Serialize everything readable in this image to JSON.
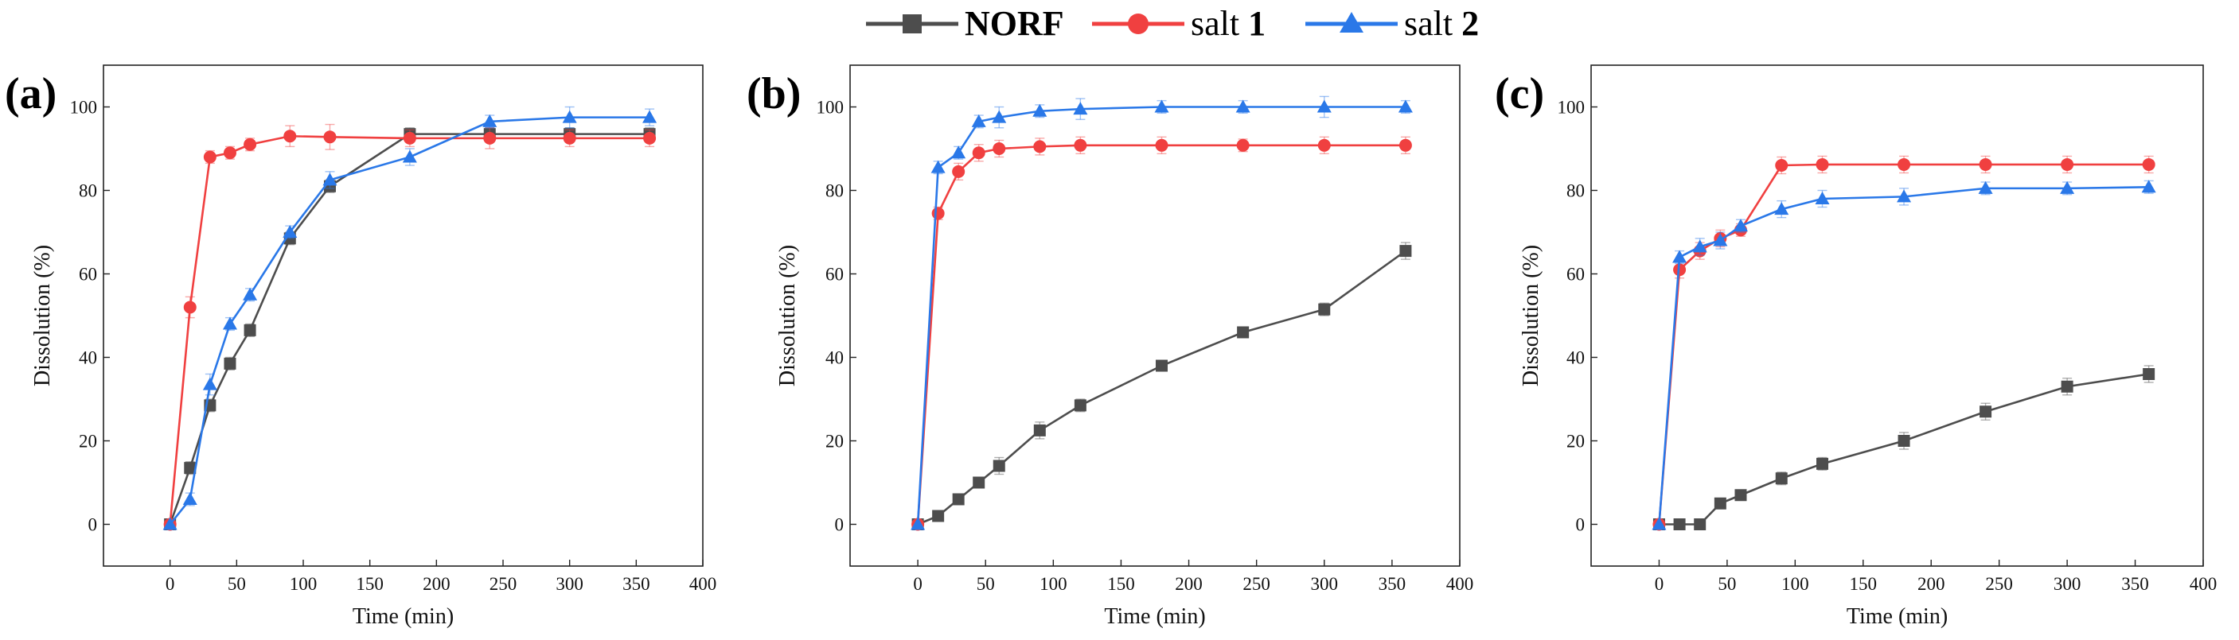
{
  "legend": [
    {
      "label": "NORF",
      "color": "#4d4d4d",
      "marker": "square",
      "bold": true
    },
    {
      "label": "salt ",
      "suffix": "1",
      "color": "#f04040",
      "marker": "circle",
      "bold": false
    },
    {
      "label": "salt ",
      "suffix": "2",
      "color": "#2a78e8",
      "marker": "triangle",
      "bold": false
    }
  ],
  "chart_data": [
    {
      "type": "line",
      "panel_label": "(a)",
      "xlabel": "Time (min)",
      "ylabel": "Dissolution (%)",
      "xlim": [
        -50,
        400
      ],
      "ylim": [
        -10,
        110
      ],
      "xticks": [
        0,
        50,
        100,
        150,
        200,
        250,
        300,
        350,
        400
      ],
      "yticks": [
        0,
        20,
        40,
        60,
        80,
        100
      ],
      "series": [
        {
          "name": "NORF",
          "x": [
            0,
            15,
            30,
            45,
            60,
            90,
            120,
            180,
            240,
            300,
            360
          ],
          "y": [
            0,
            13.5,
            28.5,
            38.5,
            46.5,
            68.5,
            81,
            93.5,
            93.5,
            93.5,
            93.5
          ],
          "err": [
            0,
            1.5,
            1.5,
            1.5,
            1.5,
            1.5,
            1.5,
            1.5,
            1.5,
            1.5,
            1.5
          ]
        },
        {
          "name": "salt 1",
          "x": [
            0,
            15,
            30,
            45,
            60,
            90,
            120,
            180,
            240,
            300,
            360
          ],
          "y": [
            0,
            52,
            88,
            89,
            91,
            93,
            92.8,
            92.5,
            92.5,
            92.5,
            92.5
          ],
          "err": [
            0,
            2.5,
            1.5,
            1.5,
            1.5,
            2.5,
            3,
            2,
            2.5,
            2,
            2
          ]
        },
        {
          "name": "salt 2",
          "x": [
            0,
            15,
            30,
            45,
            60,
            90,
            120,
            180,
            240,
            300,
            360
          ],
          "y": [
            0,
            6,
            33.5,
            48,
            55,
            70,
            82.5,
            88,
            96.5,
            97.5,
            97.5
          ],
          "err": [
            0,
            1.5,
            2.5,
            1.5,
            1.5,
            1.5,
            2,
            2,
            1.5,
            2.5,
            2
          ]
        }
      ]
    },
    {
      "type": "line",
      "panel_label": "(b)",
      "xlabel": "Time (min)",
      "ylabel": "Dissolution (%)",
      "xlim": [
        -50,
        400
      ],
      "ylim": [
        -10,
        110
      ],
      "xticks": [
        0,
        50,
        100,
        150,
        200,
        250,
        300,
        350,
        400
      ],
      "yticks": [
        0,
        20,
        40,
        60,
        80,
        100
      ],
      "series": [
        {
          "name": "NORF",
          "x": [
            0,
            15,
            30,
            45,
            60,
            90,
            120,
            180,
            240,
            300,
            360
          ],
          "y": [
            0,
            2,
            6,
            10,
            14,
            22.5,
            28.5,
            38,
            46,
            51.5,
            65.5
          ],
          "err": [
            0,
            1,
            1,
            1,
            2,
            2,
            1.5,
            1,
            1,
            1.5,
            2
          ]
        },
        {
          "name": "salt 1",
          "x": [
            0,
            15,
            30,
            45,
            60,
            90,
            120,
            180,
            240,
            300,
            360
          ],
          "y": [
            0,
            74.5,
            84.5,
            89,
            90,
            90.5,
            90.8,
            90.8,
            90.8,
            90.8,
            90.8
          ],
          "err": [
            0,
            1.5,
            2,
            2,
            2,
            2,
            2,
            2,
            1.5,
            2,
            2
          ]
        },
        {
          "name": "salt 2",
          "x": [
            0,
            15,
            30,
            45,
            60,
            90,
            120,
            180,
            240,
            300,
            360
          ],
          "y": [
            0,
            85.5,
            89,
            96.5,
            97.5,
            99,
            99.5,
            100,
            100,
            100,
            100
          ],
          "err": [
            0,
            1.5,
            1.5,
            1.5,
            2.5,
            1.5,
            2.5,
            1.5,
            1.5,
            2.5,
            1.5
          ]
        }
      ]
    },
    {
      "type": "line",
      "panel_label": "(c)",
      "xlabel": "Time (min)",
      "ylabel": "Dissolution (%)",
      "xlim": [
        -50,
        400
      ],
      "ylim": [
        -10,
        110
      ],
      "xticks": [
        0,
        50,
        100,
        150,
        200,
        250,
        300,
        350,
        400
      ],
      "yticks": [
        0,
        20,
        40,
        60,
        80,
        100
      ],
      "series": [
        {
          "name": "NORF",
          "x": [
            0,
            15,
            30,
            45,
            60,
            90,
            120,
            180,
            240,
            300,
            360
          ],
          "y": [
            0,
            0,
            0,
            5,
            7,
            11,
            14.5,
            20,
            27,
            33,
            36
          ],
          "err": [
            0,
            0.5,
            0.5,
            1,
            1,
            1.5,
            1.5,
            2,
            2,
            2,
            2
          ]
        },
        {
          "name": "salt 1",
          "x": [
            0,
            15,
            30,
            45,
            60,
            90,
            120,
            180,
            240,
            300,
            360
          ],
          "y": [
            0,
            61,
            65.5,
            68.5,
            70.5,
            86,
            86.2,
            86.2,
            86.2,
            86.2,
            86.2
          ],
          "err": [
            0,
            2,
            2,
            2,
            1.5,
            2,
            2,
            2,
            2,
            2,
            2
          ]
        },
        {
          "name": "salt 2",
          "x": [
            0,
            15,
            30,
            45,
            60,
            90,
            120,
            180,
            240,
            300,
            360
          ],
          "y": [
            0,
            64,
            66.5,
            68,
            71.5,
            75.5,
            78,
            78.5,
            80.5,
            80.5,
            80.8
          ],
          "err": [
            0,
            1.5,
            2,
            2,
            1.5,
            2,
            2,
            2,
            1.5,
            1.5,
            1.5
          ]
        }
      ]
    }
  ]
}
